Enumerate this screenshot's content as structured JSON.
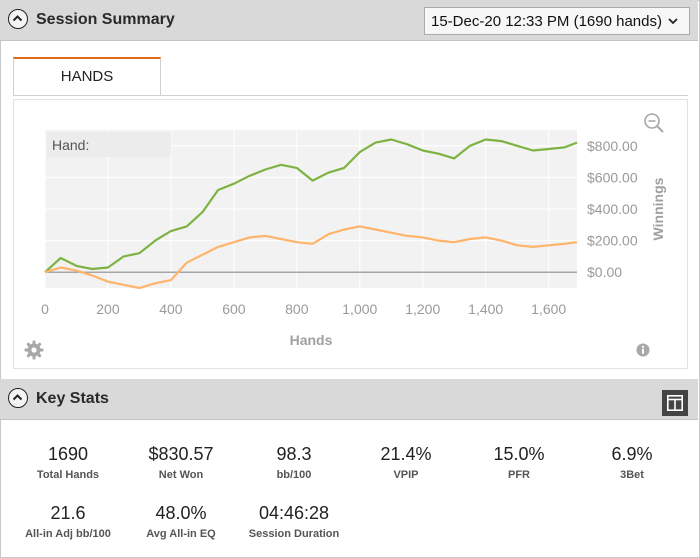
{
  "session_summary": {
    "title": "Session Summary",
    "session_selector": "15-Dec-20 12:33 PM (1690 hands)"
  },
  "tabs": [
    {
      "label": "HANDS",
      "active": true
    }
  ],
  "chart_data": {
    "type": "line",
    "tooltip_label": "Hand:",
    "xlabel": "Hands",
    "ylabel": "Winnings",
    "xlim": [
      0,
      1690
    ],
    "ylim": [
      -100,
      900
    ],
    "x_ticks": [
      "0",
      "200",
      "400",
      "600",
      "800",
      "1,000",
      "1,200",
      "1,400",
      "1,600"
    ],
    "y_ticks": [
      "$0.00",
      "$200.00",
      "$400.00",
      "$600.00",
      "$800.00"
    ],
    "grid": true,
    "series": [
      {
        "color": "#7cb342",
        "x": [
          0,
          50,
          100,
          150,
          200,
          250,
          300,
          350,
          400,
          450,
          500,
          550,
          600,
          650,
          700,
          750,
          800,
          850,
          900,
          950,
          1000,
          1050,
          1100,
          1150,
          1200,
          1250,
          1300,
          1350,
          1400,
          1450,
          1500,
          1550,
          1600,
          1650,
          1690
        ],
        "y": [
          0,
          90,
          40,
          20,
          30,
          100,
          120,
          200,
          260,
          290,
          380,
          520,
          560,
          610,
          650,
          680,
          660,
          580,
          630,
          660,
          760,
          820,
          840,
          810,
          770,
          750,
          720,
          800,
          840,
          830,
          800,
          770,
          780,
          790,
          820
        ]
      },
      {
        "color": "#ffb36b",
        "x": [
          0,
          50,
          100,
          150,
          200,
          250,
          300,
          350,
          400,
          450,
          500,
          550,
          600,
          650,
          700,
          750,
          800,
          850,
          900,
          950,
          1000,
          1050,
          1100,
          1150,
          1200,
          1250,
          1300,
          1350,
          1400,
          1450,
          1500,
          1550,
          1600,
          1650,
          1690
        ],
        "y": [
          0,
          30,
          10,
          -20,
          -60,
          -80,
          -100,
          -70,
          -50,
          60,
          110,
          160,
          190,
          220,
          230,
          210,
          190,
          180,
          240,
          270,
          290,
          270,
          250,
          230,
          220,
          200,
          190,
          210,
          220,
          200,
          170,
          160,
          170,
          180,
          190
        ]
      }
    ]
  },
  "key_stats": {
    "title": "Key Stats",
    "items": [
      {
        "value": "1690",
        "label": "Total Hands"
      },
      {
        "value": "$830.57",
        "label": "Net Won"
      },
      {
        "value": "98.3",
        "label": "bb/100"
      },
      {
        "value": "21.4%",
        "label": "VPIP"
      },
      {
        "value": "15.0%",
        "label": "PFR"
      },
      {
        "value": "6.9%",
        "label": "3Bet"
      },
      {
        "value": "21.6",
        "label": "All-in Adj bb/100"
      },
      {
        "value": "48.0%",
        "label": "Avg All-in EQ"
      },
      {
        "value": "04:46:28",
        "label": "Session Duration"
      }
    ]
  }
}
